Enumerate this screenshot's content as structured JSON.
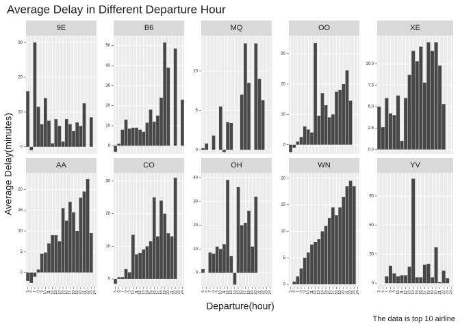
{
  "title": "Average Delay in Different Departure Hour",
  "xlabel": "Departure(hour)",
  "ylabel": "Average Delay(minutes)",
  "caption": "The data is top 10 airline",
  "chart_data": [
    {
      "type": "bar",
      "title": "9E",
      "color": "#474747",
      "grid": true,
      "ylim": [
        -2,
        32
      ],
      "yticks": [
        0,
        10,
        20,
        30
      ],
      "values": [
        16,
        -1,
        30,
        11.5,
        6.5,
        14,
        7.5,
        1,
        8,
        6,
        1.5,
        8,
        6.5,
        4.5,
        7,
        6,
        12.5,
        null,
        8.5,
        null
      ]
    },
    {
      "type": "bar",
      "title": "B6",
      "color": "#474747",
      "grid": true,
      "ylim": [
        -4,
        55
      ],
      "yticks": [
        0,
        10,
        20,
        30,
        40,
        50
      ],
      "values": [
        -3,
        1,
        8,
        13,
        8.5,
        9,
        9,
        8,
        7,
        11.5,
        18,
        12,
        15,
        24,
        51.5,
        39,
        null,
        48.5,
        null,
        23
      ]
    },
    {
      "type": "bar",
      "title": "MQ",
      "color": "#474747",
      "grid": true,
      "ylim": [
        -0.5,
        14.5
      ],
      "yticks": [
        0,
        5,
        10
      ],
      "values": [
        0.2,
        0.8,
        null,
        1.8,
        null,
        5.5,
        -0.3,
        3.5,
        3.4,
        null,
        null,
        7,
        13.5,
        8.5,
        null,
        13.5,
        9,
        6.3,
        null,
        null
      ]
    },
    {
      "type": "bar",
      "title": "OO",
      "color": "#474747",
      "grid": true,
      "ylim": [
        -3,
        36
      ],
      "yticks": [
        0,
        10,
        20,
        30
      ],
      "values": [
        -2.5,
        -1,
        1,
        2.5,
        6,
        5,
        4,
        33.5,
        9.5,
        17,
        13,
        9,
        10,
        17.5,
        18,
        20,
        24.5,
        14.5,
        null,
        null
      ]
    },
    {
      "type": "bar",
      "title": "XE",
      "color": "#474747",
      "grid": true,
      "ylim": [
        -0.5,
        13.3
      ],
      "yticks": [
        {
          "value": 0,
          "label": "0.0"
        },
        {
          "value": 2.5,
          "label": "2.5"
        },
        {
          "value": 5,
          "label": "5.0"
        },
        {
          "value": 7.5,
          "label": "7.5"
        },
        {
          "value": 10,
          "label": "10.0"
        }
      ],
      "values": [
        5,
        2.6,
        6,
        4.2,
        4,
        6.3,
        1,
        6,
        8.7,
        11.5,
        10.3,
        12,
        7.8,
        12.5,
        11.5,
        12.5,
        9.8,
        5.3,
        null,
        null
      ]
    },
    {
      "type": "bar",
      "title": "AA",
      "color": "#474747",
      "grid": true,
      "ylim": [
        -3.5,
        24
      ],
      "yticks": [
        0,
        5,
        10,
        15,
        20
      ],
      "categories": [
        "5",
        "6",
        "7",
        "8",
        "9",
        "10",
        "11",
        "12",
        "13",
        "14",
        "15",
        "16",
        "17",
        "18",
        "19",
        "20",
        "21",
        "22",
        "23",
        "24"
      ],
      "values": [
        -2,
        -2.5,
        -1,
        0.7,
        4.5,
        4.8,
        7,
        9,
        9,
        7.5,
        15.5,
        12.5,
        17,
        14.5,
        10,
        18,
        19.5,
        22.5,
        9.5,
        null
      ]
    },
    {
      "type": "bar",
      "title": "CO",
      "color": "#474747",
      "grid": true,
      "ylim": [
        -2.5,
        32.5
      ],
      "yticks": [
        0,
        10,
        20,
        30
      ],
      "categories": [
        "5",
        "6",
        "7",
        "8",
        "9",
        "10",
        "11",
        "12",
        "13",
        "14",
        "15",
        "16",
        "17",
        "18",
        "19",
        "20",
        "21",
        "22",
        "23",
        "24"
      ],
      "values": [
        -1.5,
        0.5,
        0.5,
        3,
        2,
        13.5,
        7.5,
        8,
        9,
        10,
        11.5,
        25,
        13,
        24,
        20,
        14,
        13,
        31,
        null,
        null
      ]
    },
    {
      "type": "bar",
      "title": "OH",
      "color": "#474747",
      "grid": true,
      "ylim": [
        -6,
        42
      ],
      "yticks": [
        0,
        10,
        20,
        30,
        40
      ],
      "categories": [
        "5",
        "6",
        "7",
        "8",
        "9",
        "10",
        "11",
        "12",
        "13",
        "14",
        "15",
        "16",
        "17",
        "18",
        "19",
        "20",
        "21",
        "22",
        "23",
        "24"
      ],
      "values": [
        1.5,
        0,
        8.5,
        8,
        11,
        10,
        12,
        39,
        7,
        -5,
        36,
        20,
        21,
        26,
        11,
        32,
        null,
        null,
        null,
        null
      ]
    },
    {
      "type": "bar",
      "title": "WN",
      "color": "#474747",
      "grid": true,
      "ylim": [
        -0.5,
        21
      ],
      "yticks": [
        0,
        5,
        10,
        15,
        20
      ],
      "categories": [
        "5",
        "6",
        "7",
        "8",
        "9",
        "10",
        "11",
        "12",
        "13",
        "14",
        "15",
        "16",
        "17",
        "18",
        "19",
        "20",
        "21",
        "22",
        "23",
        "24"
      ],
      "values": [
        0,
        0.5,
        1.5,
        3,
        5,
        6,
        7.5,
        8,
        8.5,
        10,
        11,
        12.5,
        14.5,
        13,
        14.5,
        16.5,
        18.5,
        19.5,
        18.5,
        null
      ]
    },
    {
      "type": "bar",
      "title": "YV",
      "color": "#474747",
      "grid": true,
      "ylim": [
        -4,
        114
      ],
      "yticks": [
        0,
        30,
        60,
        90
      ],
      "categories": [
        "5",
        "6",
        "7",
        "8",
        "9",
        "10",
        "11",
        "12",
        "13",
        "14",
        "15",
        "16",
        "17",
        "18",
        "19",
        "20",
        "21",
        "22",
        "23",
        "24"
      ],
      "values": [
        null,
        0,
        7,
        18,
        10,
        7,
        8,
        8,
        17,
        108,
        6,
        6,
        19,
        20,
        6,
        37,
        1,
        13,
        5,
        null
      ]
    }
  ]
}
